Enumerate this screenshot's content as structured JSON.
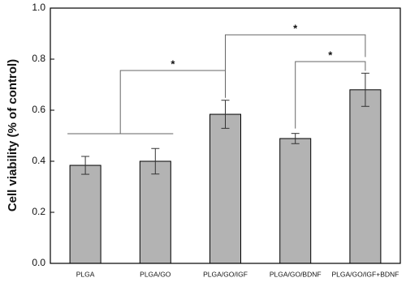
{
  "chart_data": {
    "type": "bar",
    "y_label": "Cell viability (% of control)",
    "categories": [
      "PLGA",
      "PLGA/GO",
      "PLGA/GO/IGF",
      "PLGA/GO/BDNF",
      "PLGA/GO/IGF+BDNF"
    ],
    "values": [
      0.384,
      0.4,
      0.584,
      0.489,
      0.68
    ],
    "errors": [
      0.035,
      0.05,
      0.055,
      0.02,
      0.065
    ],
    "color": "#b3b3b3",
    "ylim": [
      0,
      1
    ],
    "yticks": [
      {
        "value": 0,
        "label": "0.0"
      },
      0.2,
      0.4,
      0.6,
      0.8,
      {
        "value": 1,
        "label": "1.0"
      }
    ],
    "annotations": [
      "*",
      "*",
      "*"
    ]
  }
}
